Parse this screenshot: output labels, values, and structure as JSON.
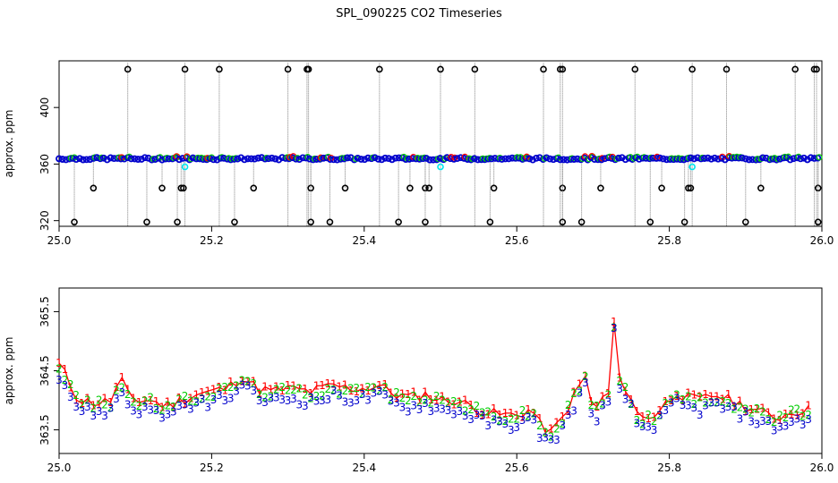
{
  "title": "SPL_090225  CO2 Timeseries",
  "colors": {
    "series1": "#ff0000",
    "series2": "#00cc00",
    "series3": "#0000cc",
    "drop_line": "#808080",
    "outlier": "#000000",
    "cyan": "#00e5ee",
    "frame": "#000000"
  },
  "chart_data": [
    {
      "type": "scatter",
      "ylabel": "approx. ppm",
      "xlabel": "",
      "xlim": [
        25.0,
        26.0
      ],
      "ylim": [
        316,
        433
      ],
      "x_ticks": [
        "25.0",
        "25.2",
        "25.4",
        "25.6",
        "25.8",
        "26.0"
      ],
      "y_ticks": [
        "320",
        "360",
        "400"
      ],
      "baseline_ppm": 363.8,
      "outliers_high": [
        25.09,
        25.165,
        25.21,
        25.3,
        25.325,
        25.327,
        25.42,
        25.5,
        25.545,
        25.635,
        25.657,
        25.66,
        25.755,
        25.83,
        25.875,
        25.965,
        25.99,
        25.993
      ],
      "outliers_mid": [
        25.045,
        25.135,
        25.16,
        25.163,
        25.255,
        25.33,
        25.375,
        25.46,
        25.48,
        25.485,
        25.57,
        25.66,
        25.71,
        25.79,
        25.825,
        25.828,
        25.92,
        25.995
      ],
      "outliers_low": [
        25.02,
        25.115,
        25.155,
        25.23,
        25.33,
        25.355,
        25.445,
        25.48,
        25.565,
        25.66,
        25.685,
        25.775,
        25.82,
        25.9,
        25.995
      ],
      "cyan_points": [
        [
          25.165,
          358
        ],
        [
          25.5,
          358
        ],
        [
          25.83,
          358
        ]
      ]
    },
    {
      "type": "line",
      "ylabel": "approx. ppm",
      "xlabel": "",
      "xlim": [
        25.0,
        26.0
      ],
      "ylim": [
        363.1,
        365.9
      ],
      "x_ticks": [
        "25.0",
        "25.2",
        "25.4",
        "25.6",
        "25.8",
        "26.0"
      ],
      "y_ticks": [
        "363.5",
        "364.5",
        "365.5"
      ],
      "series": [
        {
          "name": "1",
          "offset": 0.0
        },
        {
          "name": "2",
          "offset": -0.04
        },
        {
          "name": "3",
          "offset": -0.17
        }
      ],
      "profile": [
        [
          25.0,
          364.6
        ],
        [
          25.01,
          364.4
        ],
        [
          25.02,
          364.1
        ],
        [
          25.03,
          364.0
        ],
        [
          25.05,
          363.95
        ],
        [
          25.07,
          364.0
        ],
        [
          25.08,
          364.4
        ],
        [
          25.09,
          364.1
        ],
        [
          25.1,
          364.0
        ],
        [
          25.12,
          364.0
        ],
        [
          25.14,
          363.9
        ],
        [
          25.16,
          364.0
        ],
        [
          25.18,
          364.1
        ],
        [
          25.2,
          364.15
        ],
        [
          25.22,
          364.2
        ],
        [
          25.24,
          364.4
        ],
        [
          25.26,
          364.2
        ],
        [
          25.28,
          364.15
        ],
        [
          25.3,
          364.2
        ],
        [
          25.33,
          364.15
        ],
        [
          25.36,
          364.25
        ],
        [
          25.38,
          364.2
        ],
        [
          25.4,
          364.2
        ],
        [
          25.42,
          364.25
        ],
        [
          25.44,
          364.1
        ],
        [
          25.46,
          364.05
        ],
        [
          25.48,
          364.1
        ],
        [
          25.5,
          364.0
        ],
        [
          25.52,
          364.0
        ],
        [
          25.54,
          363.9
        ],
        [
          25.56,
          363.8
        ],
        [
          25.58,
          363.75
        ],
        [
          25.6,
          363.75
        ],
        [
          25.62,
          363.85
        ],
        [
          25.63,
          363.6
        ],
        [
          25.645,
          363.45
        ],
        [
          25.66,
          363.7
        ],
        [
          25.68,
          364.2
        ],
        [
          25.69,
          364.4
        ],
        [
          25.7,
          363.8
        ],
        [
          25.71,
          364.0
        ],
        [
          25.72,
          364.1
        ],
        [
          25.725,
          365.65
        ],
        [
          25.735,
          364.3
        ],
        [
          25.745,
          364.2
        ],
        [
          25.76,
          363.7
        ],
        [
          25.78,
          363.75
        ],
        [
          25.8,
          364.0
        ],
        [
          25.81,
          364.15
        ],
        [
          25.82,
          364.05
        ],
        [
          25.84,
          364.0
        ],
        [
          25.86,
          364.1
        ],
        [
          25.88,
          364.0
        ],
        [
          25.9,
          363.9
        ],
        [
          25.92,
          363.8
        ],
        [
          25.94,
          363.7
        ],
        [
          25.96,
          363.8
        ],
        [
          25.98,
          363.85
        ],
        [
          25.99,
          363.8
        ]
      ]
    }
  ]
}
